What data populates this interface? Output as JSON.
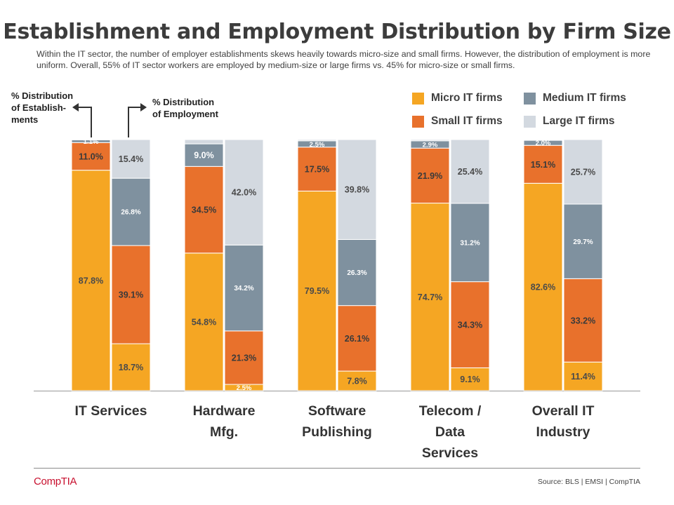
{
  "title": "Establishment and Employment Distribution by Firm Size",
  "subtitle": "Within the IT sector, the number of employer establishments skews heavily towards micro-size and small firms. However, the distribution of employment is more uniform. Overall, 55% of IT sector workers are employed by medium-size or large firms vs. 45% for micro-size or small firms.",
  "annotations": {
    "establishments": [
      "% Distribution",
      "of Establish-",
      "ments"
    ],
    "employment": [
      "% Distribution",
      "of Employment"
    ]
  },
  "footer": {
    "logo": "CompTIA",
    "source": "Source: BLS | EMSI | CompTIA"
  },
  "colors": {
    "micro": "#F5A623",
    "small": "#E8712C",
    "medium": "#7F919F",
    "large": "#D3D9E0",
    "axis": "#999999"
  },
  "chart_data": {
    "type": "bar",
    "stacked": true,
    "ylim": [
      0,
      100
    ],
    "legend": [
      "Micro IT firms",
      "Medium IT firms",
      "Small IT firms",
      "Large IT firms"
    ],
    "categories": [
      {
        "label": [
          "IT Services"
        ],
        "establishments": {
          "micro": 87.8,
          "small": 11.0,
          "medium": 1.1,
          "large": 0.1,
          "labels": {
            "micro": "87.8%",
            "small": "11.0%",
            "medium": "1.1%",
            "large": ""
          }
        },
        "employment": {
          "micro": 18.7,
          "small": 39.1,
          "medium": 26.8,
          "large": 15.4,
          "labels": {
            "micro": "18.7%",
            "small": "39.1%",
            "medium": "26.8%",
            "large": "15.4%"
          }
        }
      },
      {
        "label": [
          "Hardware",
          "Mfg."
        ],
        "establishments": {
          "micro": 54.8,
          "small": 34.5,
          "medium": 9.0,
          "large": 1.7,
          "labels": {
            "micro": "54.8%",
            "small": "34.5%",
            "medium": "9.0%",
            "large": ""
          }
        },
        "employment": {
          "micro": 2.5,
          "small": 21.3,
          "medium": 34.2,
          "large": 42.0,
          "labels": {
            "micro": "2.5%",
            "small": "21.3%",
            "medium": "34.2%",
            "large": "42.0%"
          }
        }
      },
      {
        "label": [
          "Software",
          "Publishing"
        ],
        "establishments": {
          "micro": 79.5,
          "small": 17.5,
          "medium": 2.5,
          "large": 0.5,
          "labels": {
            "micro": "79.5%",
            "small": "17.5%",
            "medium": "2.5%",
            "large": ""
          }
        },
        "employment": {
          "micro": 7.8,
          "small": 26.1,
          "medium": 26.3,
          "large": 39.8,
          "labels": {
            "micro": "7.8%",
            "small": "26.1%",
            "medium": "26.3%",
            "large": "39.8%"
          }
        }
      },
      {
        "label": [
          "Telecom /",
          "Data",
          "Services"
        ],
        "establishments": {
          "micro": 74.7,
          "small": 21.9,
          "medium": 2.9,
          "large": 0.5,
          "labels": {
            "micro": "74.7%",
            "small": "21.9%",
            "medium": "2.9%",
            "large": ""
          }
        },
        "employment": {
          "micro": 9.1,
          "small": 34.3,
          "medium": 31.2,
          "large": 25.4,
          "labels": {
            "micro": "9.1%",
            "small": "34.3%",
            "medium": "31.2%",
            "large": "25.4%"
          }
        }
      },
      {
        "label": [
          "Overall IT",
          "Industry"
        ],
        "establishments": {
          "micro": 82.6,
          "small": 15.1,
          "medium": 2.0,
          "large": 0.3,
          "labels": {
            "micro": "82.6%",
            "small": "15.1%",
            "medium": "2.0%",
            "large": ""
          }
        },
        "employment": {
          "micro": 11.4,
          "small": 33.2,
          "medium": 29.7,
          "large": 25.7,
          "labels": {
            "micro": "11.4%",
            "small": "33.2%",
            "medium": "29.7%",
            "large": "25.7%"
          }
        }
      }
    ]
  }
}
